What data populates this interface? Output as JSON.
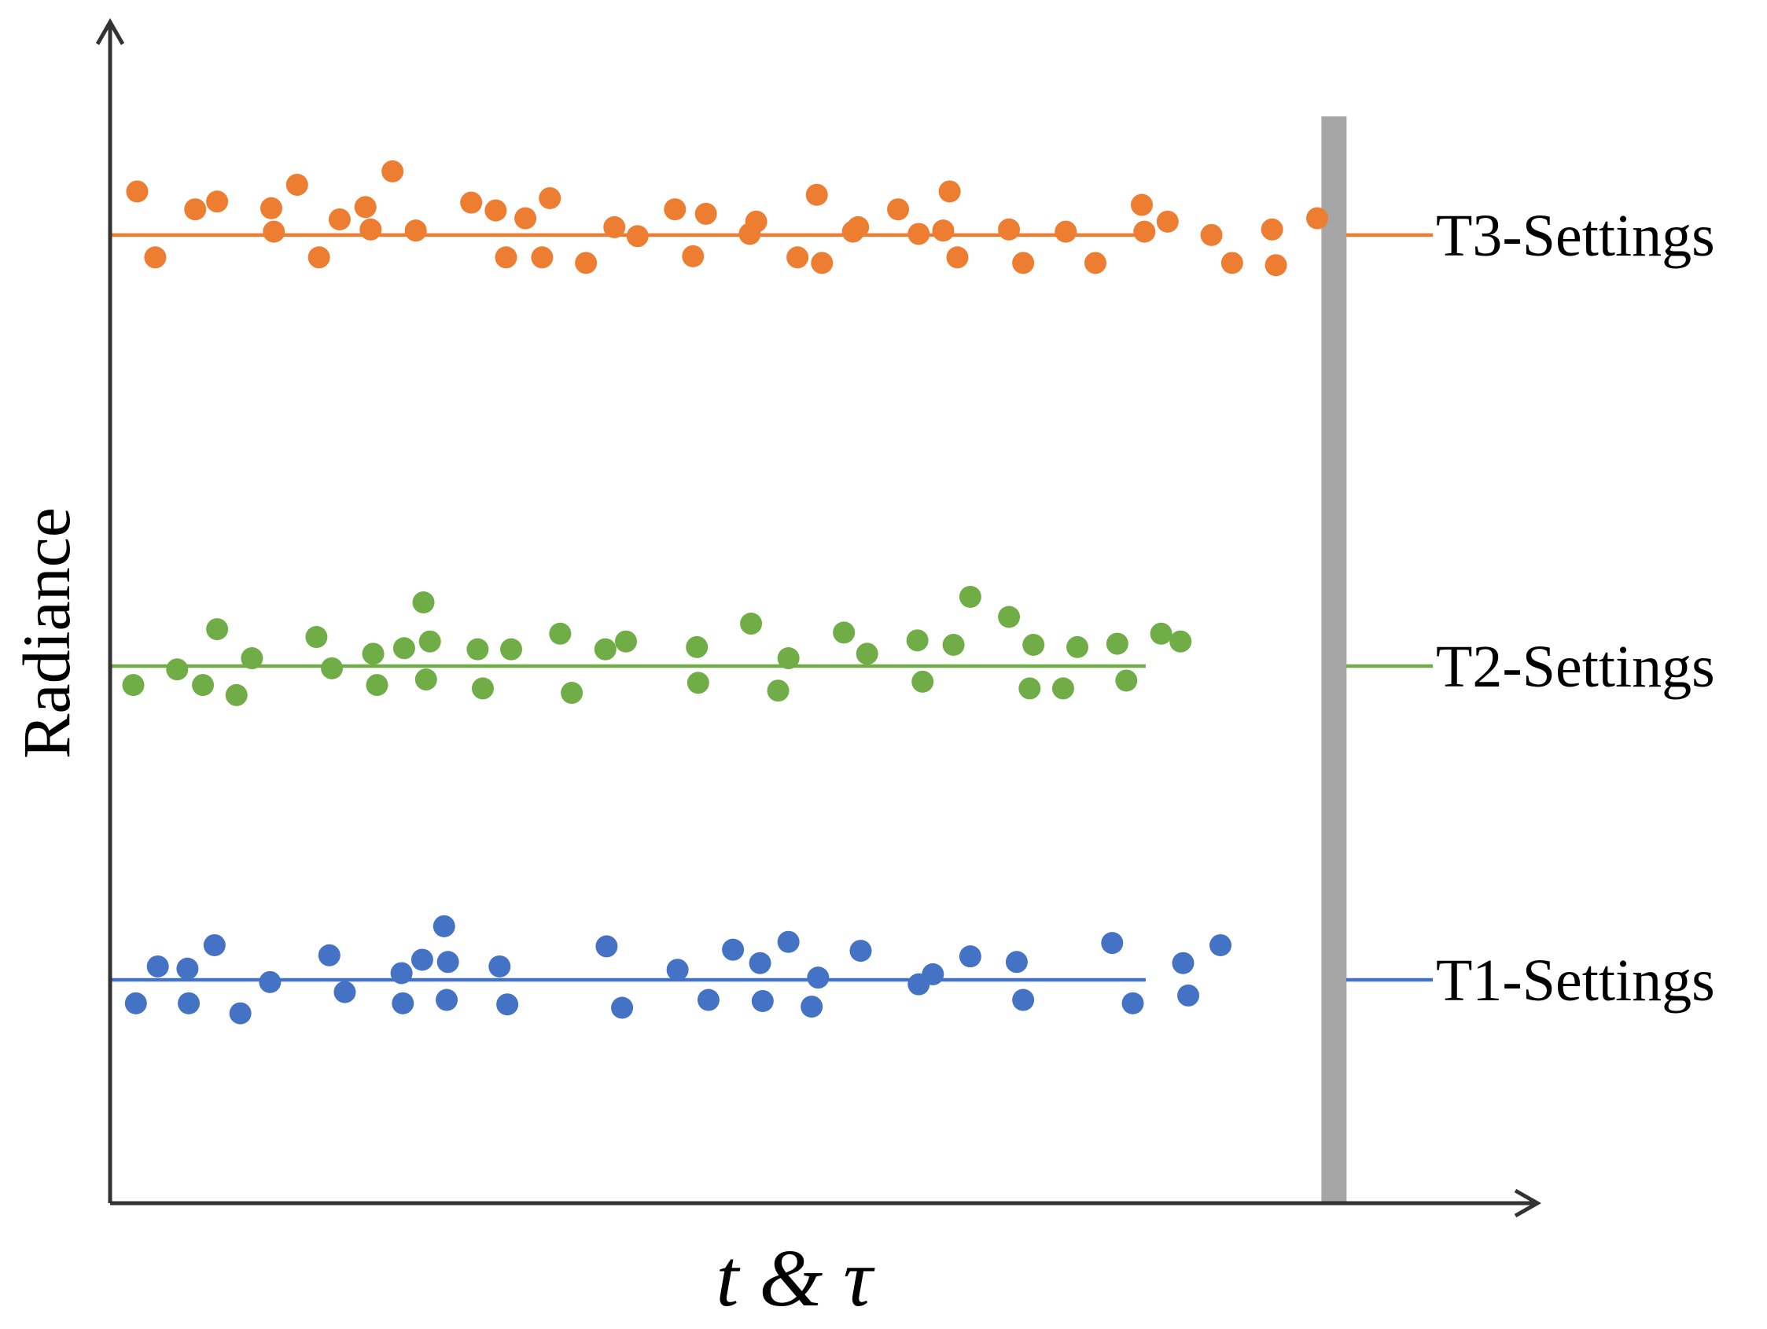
{
  "chart_data": {
    "type": "scatter",
    "xlabel": "t & τ",
    "ylabel": "Radiance",
    "xlim": [
      0,
      100
    ],
    "ylim": [
      0,
      100
    ],
    "grid": false,
    "legend": "right",
    "series": [
      {
        "name": "T3-Settings",
        "color": "#ED7D31",
        "level": 86.7,
        "x": [
          2.1,
          3.5,
          6.6,
          8.3,
          12.5,
          12.7,
          14.5,
          16.2,
          17.8,
          19.8,
          20.2,
          21.9,
          23.7,
          28.0,
          29.9,
          30.7,
          32.2,
          33.5,
          34.1,
          36.9,
          39.1,
          40.9,
          43.8,
          45.2,
          46.2,
          49.6,
          50.1,
          53.3,
          54.8,
          55.2,
          57.6,
          58.0,
          61.1,
          62.7,
          64.6,
          65.1,
          65.7,
          69.7,
          70.8,
          74.1,
          76.4,
          80.0,
          80.2,
          82.0,
          85.4,
          87.0,
          90.1,
          90.4,
          93.6
        ],
        "y": [
          90.6,
          84.7,
          89.0,
          89.7,
          89.1,
          87.0,
          91.2,
          84.7,
          88.1,
          89.2,
          87.2,
          92.4,
          87.1,
          89.6,
          88.9,
          84.7,
          88.2,
          84.7,
          90.0,
          84.2,
          87.4,
          86.6,
          89.0,
          84.8,
          88.6,
          86.8,
          87.9,
          84.7,
          90.3,
          84.2,
          87.0,
          87.4,
          89.0,
          86.8,
          87.1,
          90.6,
          84.7,
          87.2,
          84.2,
          87.0,
          84.2,
          89.4,
          87.0,
          87.9,
          86.7,
          84.2,
          87.2,
          84.0,
          88.2
        ]
      },
      {
        "name": "T2-Settings",
        "color": "#70AD47",
        "level": 48.1,
        "x": [
          1.8,
          5.2,
          7.2,
          8.3,
          9.8,
          11.0,
          16.0,
          17.2,
          20.4,
          20.7,
          22.8,
          24.3,
          24.5,
          24.8,
          28.5,
          28.9,
          31.1,
          34.9,
          35.8,
          38.4,
          40.0,
          45.5,
          45.6,
          49.7,
          51.8,
          52.6,
          56.9,
          58.7,
          62.6,
          63.0,
          65.4,
          66.7,
          69.7,
          71.3,
          71.6,
          73.9,
          75.0,
          78.1,
          78.8,
          81.5,
          83.0
        ],
        "y": [
          46.4,
          47.8,
          46.4,
          51.4,
          45.5,
          48.8,
          50.7,
          47.9,
          49.2,
          46.4,
          49.7,
          53.8,
          46.9,
          50.3,
          49.6,
          46.1,
          49.6,
          51.0,
          45.7,
          49.6,
          50.3,
          49.8,
          46.6,
          51.9,
          45.9,
          48.8,
          51.1,
          49.2,
          50.4,
          46.7,
          50.0,
          54.3,
          52.5,
          46.1,
          50.0,
          46.1,
          49.8,
          50.1,
          46.8,
          51.0,
          50.3
        ]
      },
      {
        "name": "T1-Settings",
        "color": "#4472C4",
        "level": 20.0,
        "x": [
          2.0,
          3.7,
          6.0,
          6.1,
          8.1,
          10.1,
          12.4,
          17.0,
          18.2,
          22.6,
          22.7,
          24.2,
          25.9,
          26.1,
          26.2,
          30.2,
          30.8,
          38.5,
          39.7,
          44.0,
          46.4,
          48.3,
          50.4,
          50.6,
          52.6,
          54.4,
          54.9,
          58.2,
          62.7,
          63.8,
          66.7,
          70.3,
          70.8,
          77.7,
          79.3,
          83.2,
          83.6,
          86.1
        ],
        "y": [
          17.9,
          21.2,
          21.0,
          17.9,
          23.1,
          17.0,
          19.8,
          22.2,
          18.9,
          20.6,
          17.9,
          21.8,
          24.8,
          18.2,
          21.6,
          21.2,
          17.8,
          23.0,
          17.5,
          20.9,
          18.2,
          22.7,
          21.5,
          18.1,
          23.4,
          17.6,
          20.2,
          22.6,
          19.6,
          20.5,
          22.1,
          21.6,
          18.2,
          23.3,
          17.9,
          21.5,
          18.6,
          23.1
        ]
      }
    ],
    "marker_band": {
      "x": 94.9,
      "color": "#A6A6A6"
    }
  }
}
